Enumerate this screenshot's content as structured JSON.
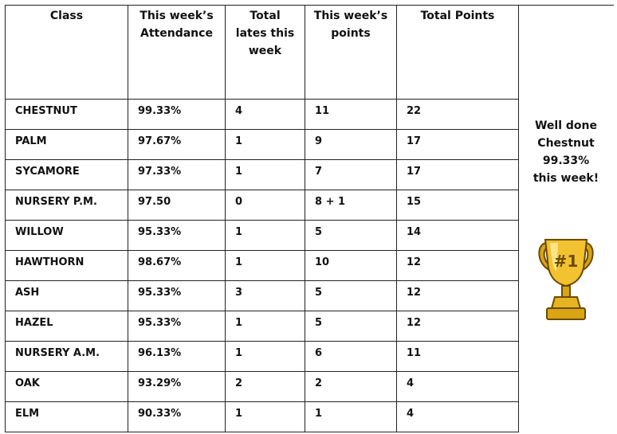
{
  "table": {
    "header": [
      "Class",
      "This week’s Attendance",
      "Total lates this week",
      "This week’s points",
      "Total Points"
    ],
    "rows": [
      [
        "CHESTNUT",
        "99.33%",
        "4",
        "11",
        "22"
      ],
      [
        "PALM",
        "97.67%",
        "1",
        "9",
        "17"
      ],
      [
        "SYCAMORE",
        "97.33%",
        "1",
        "7",
        "17"
      ],
      [
        "NURSERY P.M.",
        "97.50",
        "0",
        "8 + 1",
        "15"
      ],
      [
        "WILLOW",
        "95.33%",
        "1",
        "5",
        "14"
      ],
      [
        "HAWTHORN",
        "98.67%",
        "1",
        "10",
        "12"
      ],
      [
        "ASH",
        "95.33%",
        "3",
        "5",
        "12"
      ],
      [
        "HAZEL",
        "95.33%",
        "1",
        "5",
        "12"
      ],
      [
        "NURSERY A.M.",
        "96.13%",
        "1",
        "6",
        "11"
      ],
      [
        "OAK",
        "93.29%",
        "2",
        "2",
        "4"
      ],
      [
        "ELM",
        "90.33%",
        "1",
        "1",
        "4"
      ]
    ]
  },
  "side_note": {
    "lines": [
      "Well done",
      "Chestnut",
      "99.33%",
      "this week!"
    ],
    "badge": "#1"
  }
}
